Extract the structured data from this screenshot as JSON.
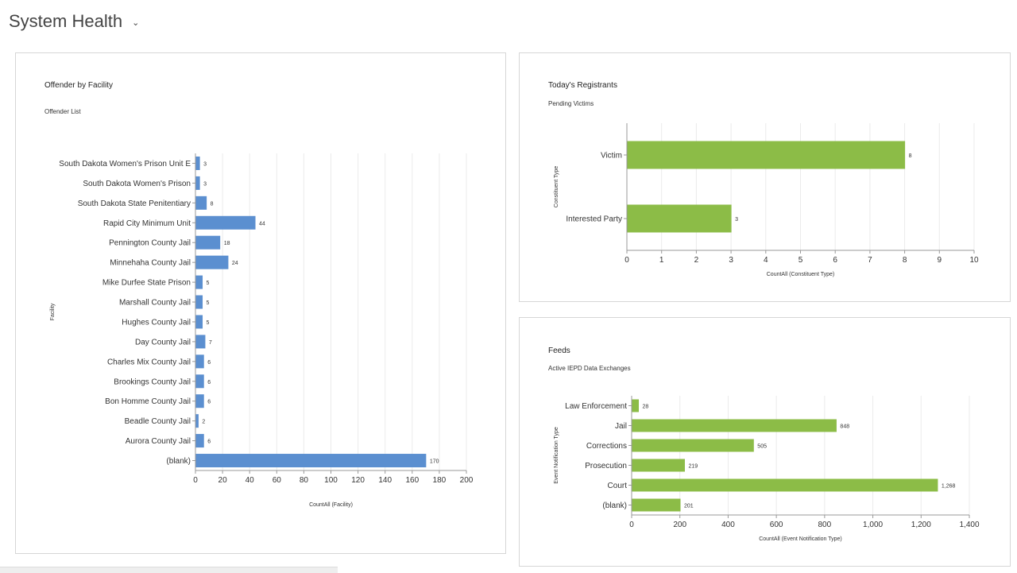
{
  "header": {
    "title": "System Health",
    "chevron": "⌄"
  },
  "colors": {
    "blue": "#5b8fd0",
    "green": "#8cbc47",
    "grid": "#ebebeb",
    "axis": "#999999"
  },
  "chart_data": [
    {
      "id": "offender",
      "type": "bar",
      "orientation": "horizontal",
      "title": "Offender by Facility",
      "subtitle": "Offender List",
      "xlabel": "CountAll (Facility)",
      "ylabel": "Facility",
      "xlim": [
        0,
        200
      ],
      "xticks": [
        0,
        20,
        40,
        60,
        80,
        100,
        120,
        140,
        160,
        180,
        200
      ],
      "xtick_labels": [
        "0",
        "20",
        "40",
        "60",
        "80",
        "100",
        "120",
        "140",
        "160",
        "180",
        "200"
      ],
      "color": "#5b8fd0",
      "categories": [
        "South Dakota Women's Prison Unit E",
        "South Dakota Women's Prison",
        "South Dakota State Penitentiary",
        "Rapid City Minimum Unit",
        "Pennington County Jail",
        "Minnehaha County Jail",
        "Mike Durfee State Prison",
        "Marshall County Jail",
        "Hughes County Jail",
        "Day County Jail",
        "Charles Mix County Jail",
        "Brookings County Jail",
        "Bon Homme County Jail",
        "Beadle County Jail",
        "Aurora County Jail",
        "(blank)"
      ],
      "values": [
        3,
        3,
        8,
        44,
        18,
        24,
        5,
        5,
        5,
        7,
        6,
        6,
        6,
        2,
        6,
        170
      ],
      "value_labels": [
        "3",
        "3",
        "8",
        "44",
        "18",
        "24",
        "5",
        "5",
        "5",
        "7",
        "6",
        "6",
        "6",
        "2",
        "6",
        "170"
      ]
    },
    {
      "id": "registrants",
      "type": "bar",
      "orientation": "horizontal",
      "title": "Today's Registrants",
      "subtitle": "Pending Victims",
      "xlabel": "CountAll (Constituent Type)",
      "ylabel": "Constituent Type",
      "xlim": [
        0,
        10
      ],
      "xticks": [
        0,
        1,
        2,
        3,
        4,
        5,
        6,
        7,
        8,
        9,
        10
      ],
      "xtick_labels": [
        "0",
        "1",
        "2",
        "3",
        "4",
        "5",
        "6",
        "7",
        "8",
        "9",
        "10"
      ],
      "color": "#8cbc47",
      "categories": [
        "Victim",
        "Interested Party"
      ],
      "values": [
        8,
        3
      ],
      "value_labels": [
        "8",
        "3"
      ]
    },
    {
      "id": "feeds",
      "type": "bar",
      "orientation": "horizontal",
      "title": "Feeds",
      "subtitle": "Active IEPD Data Exchanges",
      "xlabel": "CountAll (Event Notification Type)",
      "ylabel": "Event Notification Type",
      "xlim": [
        0,
        1400
      ],
      "xticks": [
        0,
        200,
        400,
        600,
        800,
        1000,
        1200,
        1400
      ],
      "xtick_labels": [
        "0",
        "200",
        "400",
        "600",
        "800",
        "1,000",
        "1,200",
        "1,400"
      ],
      "color": "#8cbc47",
      "categories": [
        "Law Enforcement",
        "Jail",
        "Corrections",
        "Prosecution",
        "Court",
        "(blank)"
      ],
      "values": [
        28,
        848,
        505,
        219,
        1268,
        201
      ],
      "value_labels": [
        "28",
        "848",
        "505",
        "219",
        "1,268",
        "201"
      ]
    }
  ]
}
